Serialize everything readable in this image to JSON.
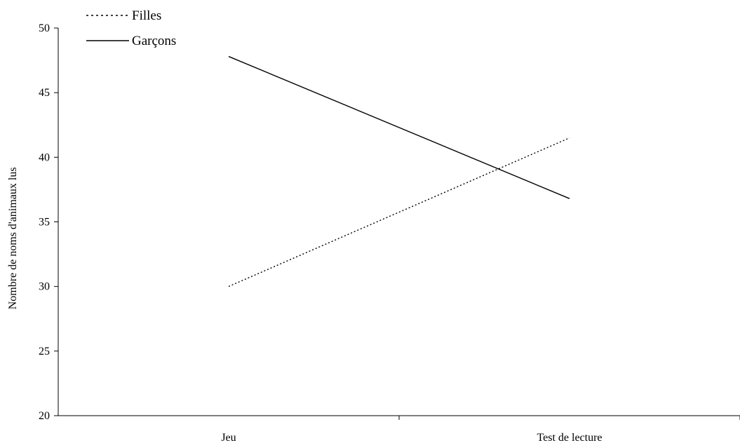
{
  "chart_data": {
    "type": "line",
    "categories": [
      "Jeu",
      "Test de lecture"
    ],
    "series": [
      {
        "name": "Filles",
        "values": [
          30.0,
          41.5
        ],
        "line_style": "dotted",
        "color": "#000000"
      },
      {
        "name": "Garçons",
        "values": [
          47.8,
          36.8
        ],
        "line_style": "solid",
        "color": "#000000"
      }
    ],
    "title": "",
    "xlabel": "",
    "ylabel": "Nombre de noms d'animaux lus",
    "ylim": [
      20,
      50
    ],
    "yticks": [
      20,
      25,
      30,
      35,
      40,
      45,
      50
    ],
    "grid": false,
    "legend_placement": "top-left"
  }
}
